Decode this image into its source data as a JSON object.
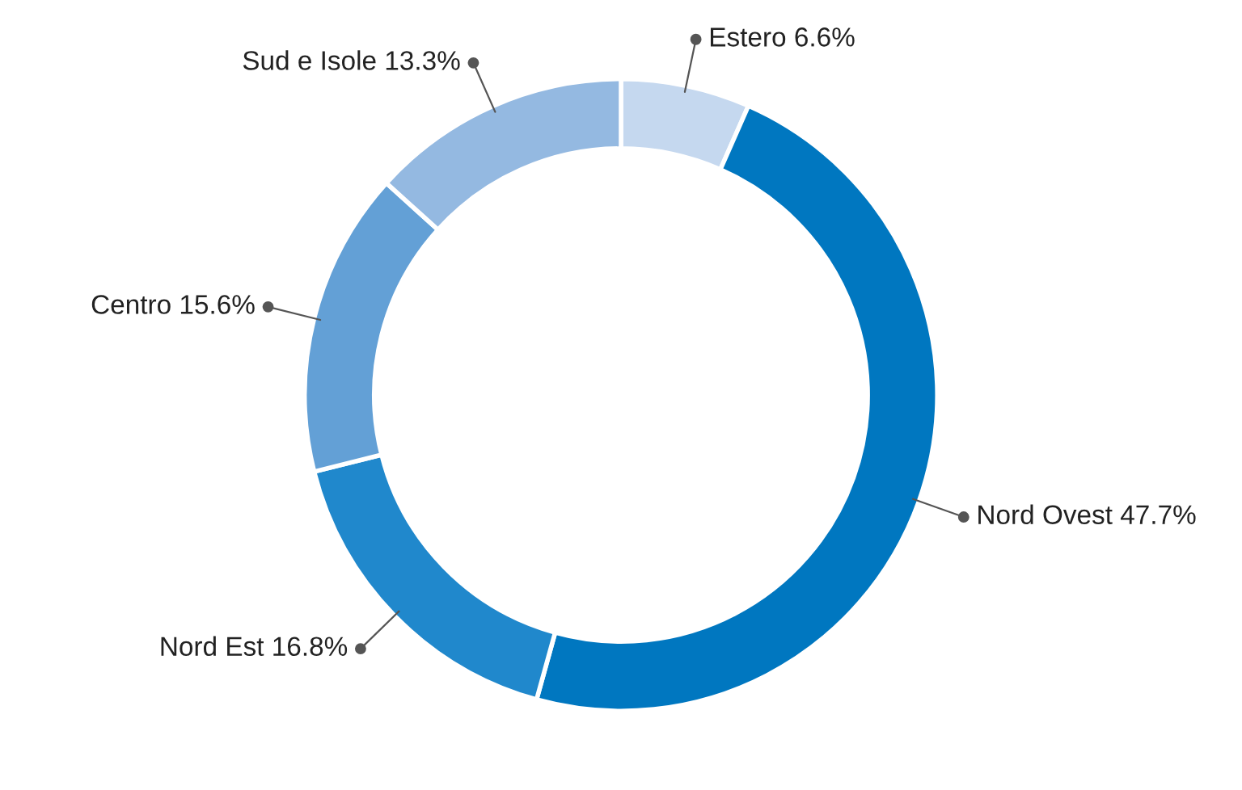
{
  "chart_data": {
    "type": "donut",
    "categories": [
      "Estero",
      "Nord Ovest",
      "Nord Est",
      "Centro",
      "Sud e Isole"
    ],
    "values": [
      6.6,
      47.7,
      16.8,
      15.6,
      13.3
    ],
    "colors": [
      "#c5d8ef",
      "#0077c0",
      "#2088cc",
      "#63a0d6",
      "#94b9e1"
    ],
    "value_labels": [
      "6.6%",
      "47.7%",
      "16.8%",
      "15.6%",
      "13.3%"
    ],
    "legend": false
  }
}
